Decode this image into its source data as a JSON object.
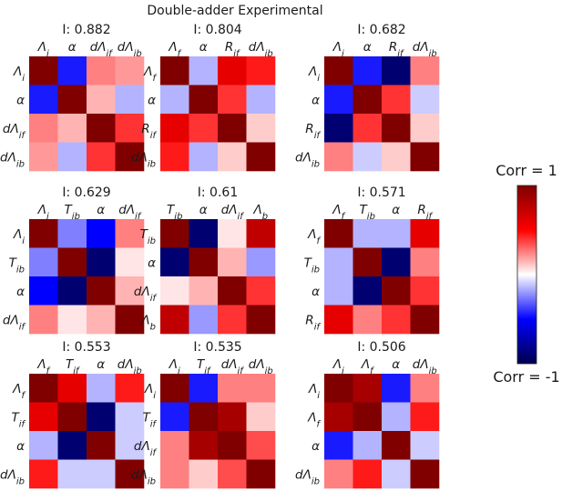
{
  "figure_title": "Double-adder Experimental",
  "colorbar": {
    "top_label": "Corr = 1",
    "bottom_label": "Corr = -1",
    "range": [
      -1,
      1
    ],
    "colormap": "seismic"
  },
  "chart_data": [
    {
      "type": "heatmap",
      "title": "I: 0.882",
      "labels": [
        {
          "base": "Λ",
          "sub": "i"
        },
        {
          "base": "α",
          "sub": ""
        },
        {
          "base": "dΛ",
          "sub": "if"
        },
        {
          "base": "dΛ",
          "sub": "ib"
        }
      ],
      "matrix": [
        [
          1,
          -0.45,
          0.25,
          0.2
        ],
        [
          -0.45,
          1,
          0.15,
          -0.15
        ],
        [
          0.25,
          0.15,
          1,
          0.4
        ],
        [
          0.2,
          -0.15,
          0.4,
          1
        ]
      ]
    },
    {
      "type": "heatmap",
      "title": "I: 0.804",
      "labels": [
        {
          "base": "Λ",
          "sub": "f"
        },
        {
          "base": "α",
          "sub": ""
        },
        {
          "base": "R",
          "sub": "if"
        },
        {
          "base": "dΛ",
          "sub": "ib"
        }
      ],
      "matrix": [
        [
          1,
          -0.15,
          0.6,
          0.45
        ],
        [
          -0.15,
          1,
          0.4,
          -0.15
        ],
        [
          0.6,
          0.4,
          1,
          0.1
        ],
        [
          0.45,
          -0.15,
          0.1,
          1
        ]
      ]
    },
    {
      "type": "heatmap",
      "title": "I: 0.682",
      "labels": [
        {
          "base": "Λ",
          "sub": "i"
        },
        {
          "base": "α",
          "sub": ""
        },
        {
          "base": "R",
          "sub": "if"
        },
        {
          "base": "dΛ",
          "sub": "ib"
        }
      ],
      "matrix": [
        [
          1,
          -0.45,
          -0.9,
          0.25
        ],
        [
          -0.45,
          1,
          0.4,
          -0.1
        ],
        [
          -0.9,
          0.4,
          1,
          0.1
        ],
        [
          0.25,
          -0.1,
          0.1,
          1
        ]
      ]
    },
    {
      "type": "heatmap",
      "title": "I: 0.629",
      "labels": [
        {
          "base": "Λ",
          "sub": "i"
        },
        {
          "base": "T",
          "sub": "ib"
        },
        {
          "base": "α",
          "sub": ""
        },
        {
          "base": "dΛ",
          "sub": "if"
        }
      ],
      "matrix": [
        [
          1,
          -0.25,
          -0.5,
          0.25
        ],
        [
          -0.25,
          1,
          -0.9,
          0.05
        ],
        [
          -0.5,
          -0.9,
          1,
          0.15
        ],
        [
          0.25,
          0.05,
          0.15,
          1
        ]
      ]
    },
    {
      "type": "heatmap",
      "title": "I: 0.61",
      "labels": [
        {
          "base": "T",
          "sub": "ib"
        },
        {
          "base": "α",
          "sub": ""
        },
        {
          "base": "dΛ",
          "sub": "if"
        },
        {
          "base": "Λ",
          "sub": "b"
        }
      ],
      "matrix": [
        [
          1,
          -0.9,
          0.05,
          0.75
        ],
        [
          -0.9,
          1,
          0.15,
          -0.2
        ],
        [
          0.05,
          0.15,
          1,
          0.4
        ],
        [
          0.75,
          -0.2,
          0.4,
          1
        ]
      ]
    },
    {
      "type": "heatmap",
      "title": "I: 0.571",
      "labels": [
        {
          "base": "Λ",
          "sub": "f"
        },
        {
          "base": "T",
          "sub": "ib"
        },
        {
          "base": "α",
          "sub": ""
        },
        {
          "base": "R",
          "sub": "if"
        }
      ],
      "matrix": [
        [
          1,
          -0.15,
          -0.15,
          0.6
        ],
        [
          -0.15,
          1,
          -0.9,
          0.25
        ],
        [
          -0.15,
          -0.9,
          1,
          0.4
        ],
        [
          0.6,
          0.25,
          0.4,
          1
        ]
      ]
    },
    {
      "type": "heatmap",
      "title": "I: 0.553",
      "labels": [
        {
          "base": "Λ",
          "sub": "f"
        },
        {
          "base": "T",
          "sub": "if"
        },
        {
          "base": "α",
          "sub": ""
        },
        {
          "base": "dΛ",
          "sub": "ib"
        }
      ],
      "matrix": [
        [
          1,
          0.6,
          -0.15,
          0.45
        ],
        [
          0.6,
          1,
          -0.9,
          -0.1
        ],
        [
          -0.15,
          -0.9,
          1,
          -0.1
        ],
        [
          0.45,
          -0.1,
          -0.1,
          1
        ]
      ]
    },
    {
      "type": "heatmap",
      "title": "I: 0.535",
      "labels": [
        {
          "base": "Λ",
          "sub": "i"
        },
        {
          "base": "T",
          "sub": "if"
        },
        {
          "base": "dΛ",
          "sub": "if"
        },
        {
          "base": "dΛ",
          "sub": "ib"
        }
      ],
      "matrix": [
        [
          1,
          -0.45,
          0.25,
          0.25
        ],
        [
          -0.45,
          1,
          0.85,
          0.1
        ],
        [
          0.25,
          0.85,
          1,
          0.35
        ],
        [
          0.25,
          0.1,
          0.35,
          1
        ]
      ]
    },
    {
      "type": "heatmap",
      "title": "I: 0.506",
      "labels": [
        {
          "base": "Λ",
          "sub": "i"
        },
        {
          "base": "Λ",
          "sub": "f"
        },
        {
          "base": "α",
          "sub": ""
        },
        {
          "base": "dΛ",
          "sub": "ib"
        }
      ],
      "matrix": [
        [
          1,
          0.85,
          -0.45,
          0.25
        ],
        [
          0.85,
          1,
          -0.15,
          0.45
        ],
        [
          -0.45,
          -0.15,
          1,
          -0.1
        ],
        [
          0.25,
          0.45,
          -0.1,
          1
        ]
      ]
    }
  ]
}
